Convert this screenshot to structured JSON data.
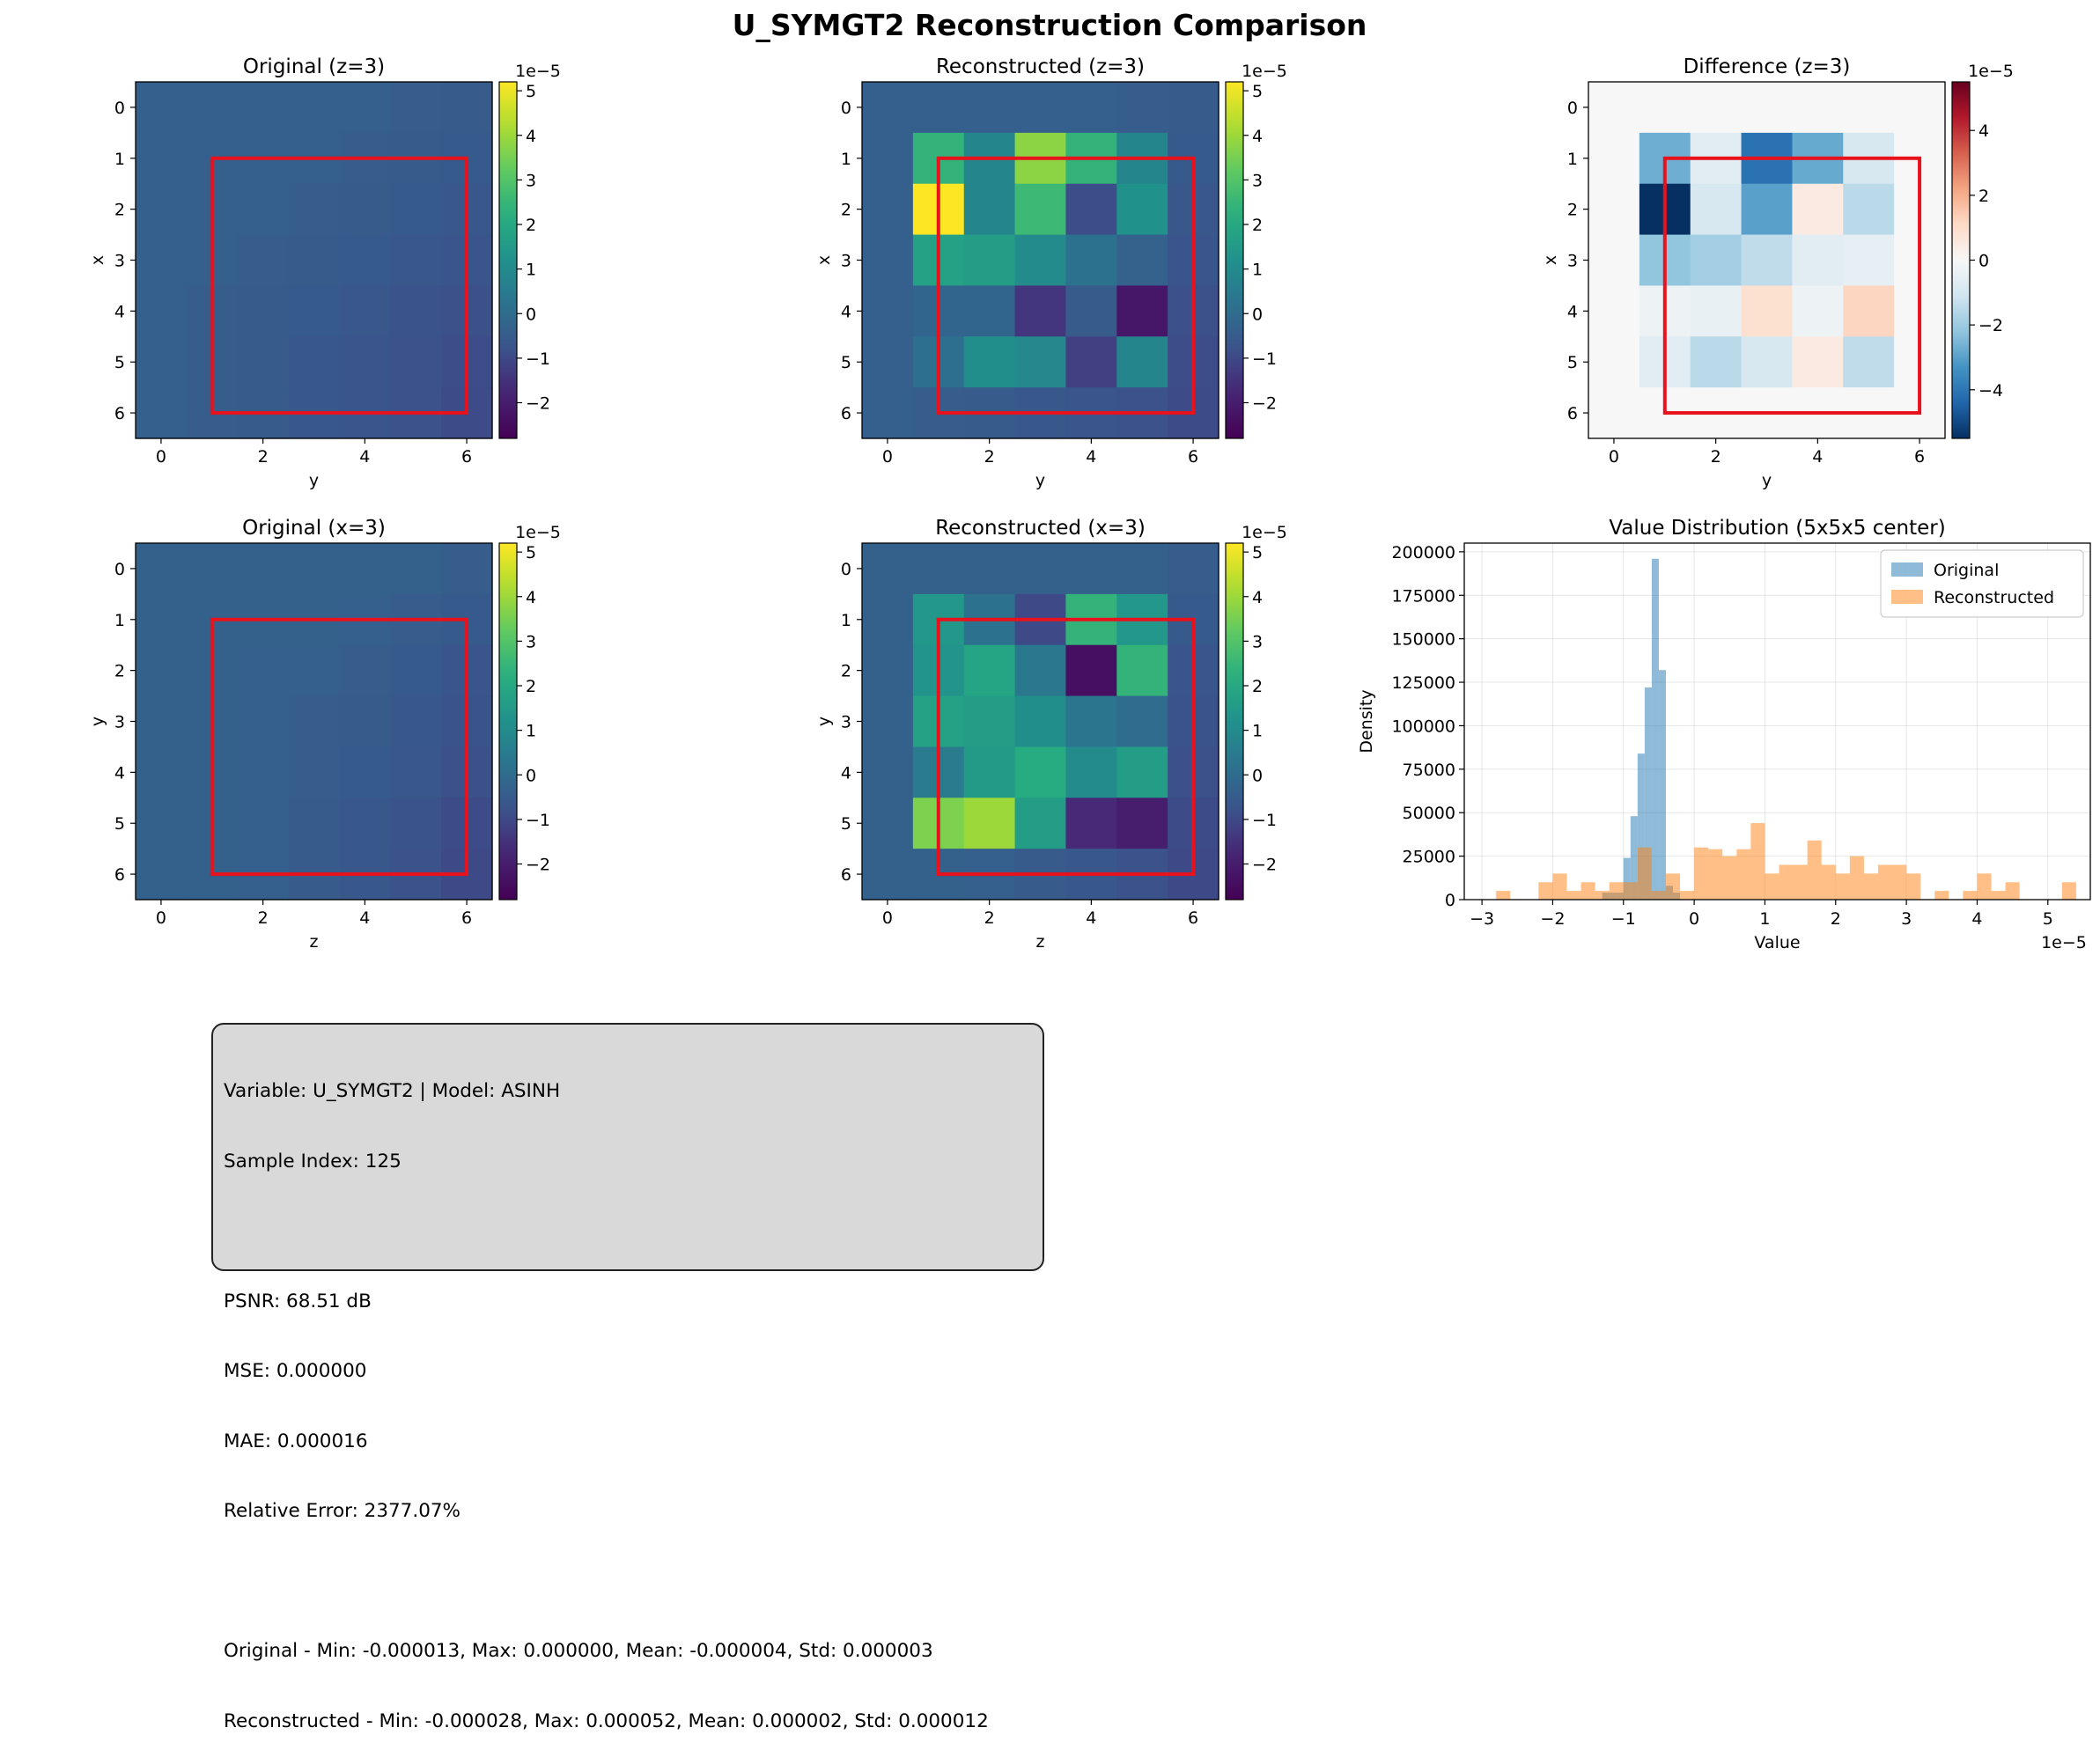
{
  "figure_title": "U_SYMGT2 Reconstruction Comparison",
  "chart_data": [
    {
      "type": "heatmap",
      "title": "Original (z=3)",
      "xlabel": "y",
      "ylabel": "x",
      "x_ticks": [
        "0",
        "2",
        "4",
        "6"
      ],
      "y_ticks": [
        "0",
        "1",
        "2",
        "3",
        "4",
        "5",
        "6"
      ],
      "colormap": "viridis",
      "vmin": -2.8e-05,
      "vmax": 5.2e-05,
      "colorbar_ticks": [
        "−2",
        "−1",
        "0",
        "1",
        "2",
        "3",
        "4",
        "5"
      ],
      "colorbar_exponent": "1e−5",
      "highlight_box": "rows 1-5, cols 1-5",
      "highlight_color": "#e8121c",
      "values": [
        [
          -4e-06,
          -4e-06,
          -4e-06,
          -4e-06,
          -4e-06,
          -4.5e-06,
          -5e-06
        ],
        [
          -4e-06,
          -4e-06,
          -4e-06,
          -4e-06,
          -4.5e-06,
          -5e-06,
          -5.5e-06
        ],
        [
          -4e-06,
          -4e-06,
          -4e-06,
          -4.5e-06,
          -5e-06,
          -5.5e-06,
          -6.5e-06
        ],
        [
          -4e-06,
          -4e-06,
          -4.5e-06,
          -5e-06,
          -5.5e-06,
          -6.5e-06,
          -7e-06
        ],
        [
          -4e-06,
          -4.5e-06,
          -5e-06,
          -5.5e-06,
          -6.5e-06,
          -7.5e-06,
          -8.5e-06
        ],
        [
          -4e-06,
          -4.5e-06,
          -5e-06,
          -6e-06,
          -7e-06,
          -8e-06,
          -9e-06
        ],
        [
          -4e-06,
          -4.5e-06,
          -5e-06,
          -6e-06,
          -7e-06,
          -8e-06,
          -9.5e-06
        ]
      ]
    },
    {
      "type": "heatmap",
      "title": "Reconstructed (z=3)",
      "xlabel": "y",
      "ylabel": "x",
      "x_ticks": [
        "0",
        "2",
        "4",
        "6"
      ],
      "y_ticks": [
        "0",
        "1",
        "2",
        "3",
        "4",
        "5",
        "6"
      ],
      "colormap": "viridis",
      "vmin": -2.8e-05,
      "vmax": 5.2e-05,
      "colorbar_ticks": [
        "−2",
        "−1",
        "0",
        "1",
        "2",
        "3",
        "4",
        "5"
      ],
      "colorbar_exponent": "1e−5",
      "highlight_box": "rows 1-5, cols 1-5",
      "highlight_color": "#e8121c",
      "values": [
        [
          -4e-06,
          -4e-06,
          -4e-06,
          -4e-06,
          -4e-06,
          -4.5e-06,
          -5e-06
        ],
        [
          -4e-06,
          2.4e-05,
          8e-06,
          3.8e-05,
          2.4e-05,
          8e-06,
          -5.5e-06
        ],
        [
          -4e-06,
          5.2e-05,
          8e-06,
          2.6e-05,
          -9e-06,
          1.2e-05,
          -6.5e-06
        ],
        [
          -4e-06,
          1.8e-05,
          1.6e-05,
          1e-05,
          2e-06,
          -3e-06,
          -7e-06
        ],
        [
          -4e-06,
          -2e-06,
          -2e-06,
          -1.4e-05,
          -5e-06,
          -2.2e-05,
          -8.5e-06
        ],
        [
          -4e-06,
          1e-06,
          1.1e-05,
          9e-06,
          -1.2e-05,
          8e-06,
          -9e-06
        ],
        [
          -4e-06,
          -4.5e-06,
          -5e-06,
          -6e-06,
          -7e-06,
          -8e-06,
          -9.5e-06
        ]
      ]
    },
    {
      "type": "heatmap",
      "title": "Difference (z=3)",
      "xlabel": "y",
      "ylabel": "x",
      "x_ticks": [
        "0",
        "2",
        "4",
        "6"
      ],
      "y_ticks": [
        "0",
        "1",
        "2",
        "3",
        "4",
        "5",
        "6"
      ],
      "colormap": "RdBu_r",
      "vmin": -5.5e-05,
      "vmax": 5.5e-05,
      "colorbar_ticks": [
        "−4",
        "−2",
        "0",
        "2",
        "4"
      ],
      "colorbar_exponent": "1e−5",
      "highlight_box": "rows 1-5, cols 1-5",
      "highlight_color": "#e8121c",
      "values": [
        [
          0,
          0,
          0,
          0,
          0,
          0,
          0
        ],
        [
          0,
          -2.7e-05,
          -6e-06,
          -4.1e-05,
          -2.8e-05,
          -9e-06,
          0
        ],
        [
          0,
          -5.5e-05,
          -9e-06,
          -3e-05,
          5e-06,
          -1.5e-05,
          0
        ],
        [
          0,
          -2.2e-05,
          -1.9e-05,
          -1.4e-05,
          -6e-06,
          -5e-06,
          0
        ],
        [
          0,
          -3e-06,
          -4e-06,
          9e-06,
          -3e-06,
          1.2e-05,
          0
        ],
        [
          0,
          -6e-06,
          -1.5e-05,
          -9e-06,
          5e-06,
          -1.4e-05,
          0
        ],
        [
          0,
          0,
          0,
          0,
          0,
          0,
          0
        ]
      ]
    },
    {
      "type": "heatmap",
      "title": "Original (x=3)",
      "xlabel": "z",
      "ylabel": "y",
      "x_ticks": [
        "0",
        "2",
        "4",
        "6"
      ],
      "y_ticks": [
        "0",
        "1",
        "2",
        "3",
        "4",
        "5",
        "6"
      ],
      "colormap": "viridis",
      "vmin": -2.8e-05,
      "vmax": 5.2e-05,
      "colorbar_ticks": [
        "−2",
        "−1",
        "0",
        "1",
        "2",
        "3",
        "4",
        "5"
      ],
      "colorbar_exponent": "1e−5",
      "highlight_box": "rows 1-5, cols 1-5",
      "highlight_color": "#e8121c",
      "values": [
        [
          -3.5e-06,
          -3.5e-06,
          -3.5e-06,
          -3.5e-06,
          -3.5e-06,
          -3.5e-06,
          -4.5e-06
        ],
        [
          -3.5e-06,
          -3.5e-06,
          -3.5e-06,
          -3.5e-06,
          -4e-06,
          -4.5e-06,
          -5.5e-06
        ],
        [
          -3.5e-06,
          -3.5e-06,
          -4e-06,
          -4e-06,
          -4.5e-06,
          -5.5e-06,
          -7e-06
        ],
        [
          -3.5e-06,
          -3.5e-06,
          -4e-06,
          -4.5e-06,
          -5e-06,
          -6e-06,
          -7.5e-06
        ],
        [
          -3.5e-06,
          -3.5e-06,
          -4e-06,
          -4.5e-06,
          -5.5e-06,
          -6.5e-06,
          -8.5e-06
        ],
        [
          -3.5e-06,
          -3.5e-06,
          -4e-06,
          -5e-06,
          -6e-06,
          -7.5e-06,
          -9.5e-06
        ],
        [
          -3.5e-06,
          -3.5e-06,
          -4e-06,
          -5e-06,
          -6e-06,
          -8e-06,
          -1e-05
        ]
      ]
    },
    {
      "type": "heatmap",
      "title": "Reconstructed (x=3)",
      "xlabel": "z",
      "ylabel": "y",
      "x_ticks": [
        "0",
        "2",
        "4",
        "6"
      ],
      "y_ticks": [
        "0",
        "1",
        "2",
        "3",
        "4",
        "5",
        "6"
      ],
      "colormap": "viridis",
      "vmin": -2.8e-05,
      "vmax": 5.2e-05,
      "colorbar_ticks": [
        "−2",
        "−1",
        "0",
        "1",
        "2",
        "3",
        "4",
        "5"
      ],
      "colorbar_exponent": "1e−5",
      "highlight_box": "rows 1-5, cols 1-5",
      "highlight_color": "#e8121c",
      "values": [
        [
          -3.5e-06,
          -3.5e-06,
          -3.5e-06,
          -3.5e-06,
          -3.5e-06,
          -3.5e-06,
          -4.5e-06
        ],
        [
          -3.5e-06,
          1.4e-05,
          2e-06,
          -1e-05,
          2.4e-05,
          1.4e-05,
          -5.5e-06
        ],
        [
          -3.5e-06,
          1.3e-05,
          1.9e-05,
          4e-06,
          -2.4e-05,
          2.4e-05,
          -7e-06
        ],
        [
          -3.5e-06,
          1.8e-05,
          1.6e-05,
          1.1e-05,
          3e-06,
          0.0,
          -7.5e-06
        ],
        [
          -3.5e-06,
          5e-06,
          1.5e-05,
          2.1e-05,
          1e-05,
          1.6e-05,
          -8.5e-06
        ],
        [
          -3.5e-06,
          3.6e-05,
          4e-05,
          1.6e-05,
          -1.7e-05,
          -2e-05,
          -9.5e-06
        ],
        [
          -3.5e-06,
          -3.5e-06,
          -4e-06,
          -5e-06,
          -6e-06,
          -8e-06,
          -1e-05
        ]
      ]
    },
    {
      "type": "histogram",
      "title": "Value Distribution (5x5x5 center)",
      "xlabel": "Value",
      "ylabel": "Density",
      "x_exponent": "1e−5",
      "xlim": [
        -3.25e-05,
        5.6e-05
      ],
      "ylim": [
        0,
        205000
      ],
      "x_ticks": [
        {
          "v": -3e-05,
          "label": "−3"
        },
        {
          "v": -2e-05,
          "label": "−2"
        },
        {
          "v": -1e-05,
          "label": "−1"
        },
        {
          "v": 0,
          "label": "0"
        },
        {
          "v": 1e-05,
          "label": "1"
        },
        {
          "v": 2e-05,
          "label": "2"
        },
        {
          "v": 3e-05,
          "label": "3"
        },
        {
          "v": 4e-05,
          "label": "4"
        },
        {
          "v": 5e-05,
          "label": "5"
        }
      ],
      "y_ticks": [
        0,
        25000,
        50000,
        75000,
        100000,
        125000,
        150000,
        175000,
        200000
      ],
      "grid": true,
      "legend_position": "upper right",
      "series": [
        {
          "name": "Original",
          "color": "#1f77b4",
          "alpha": 0.5,
          "bin_width": 1e-06,
          "bins": [
            [
              -1.3e-05,
              4000
            ],
            [
              -1.2e-05,
              4000
            ],
            [
              -1.1e-05,
              4000
            ],
            [
              -1e-05,
              24000
            ],
            [
              -9e-06,
              48000
            ],
            [
              -8e-06,
              84000
            ],
            [
              -7e-06,
              122000
            ],
            [
              -6e-06,
              196000
            ],
            [
              -5e-06,
              132000
            ],
            [
              -4e-06,
              8000
            ],
            [
              -3e-06,
              4000
            ]
          ]
        },
        {
          "name": "Reconstructed",
          "color": "#ff7f0e",
          "alpha": 0.5,
          "bin_width": 2e-06,
          "bins": [
            [
              -2.8e-05,
              5000
            ],
            [
              -2.6e-05,
              0
            ],
            [
              -2.4e-05,
              0
            ],
            [
              -2.2e-05,
              10000
            ],
            [
              -2e-05,
              15000
            ],
            [
              -1.8e-05,
              5000
            ],
            [
              -1.6e-05,
              10000
            ],
            [
              -1.4e-05,
              5000
            ],
            [
              -1.2e-05,
              10000
            ],
            [
              -1e-05,
              10000
            ],
            [
              -8e-06,
              30000
            ],
            [
              -6e-06,
              5000
            ],
            [
              -4e-06,
              15000
            ],
            [
              -2e-06,
              5000
            ],
            [
              0.0,
              30000
            ],
            [
              2e-06,
              29000
            ],
            [
              4e-06,
              25000
            ],
            [
              6e-06,
              29000
            ],
            [
              8e-06,
              44000
            ],
            [
              1e-05,
              15000
            ],
            [
              1.2e-05,
              20000
            ],
            [
              1.4e-05,
              20000
            ],
            [
              1.6e-05,
              34000
            ],
            [
              1.8e-05,
              20000
            ],
            [
              2e-05,
              15000
            ],
            [
              2.2e-05,
              25000
            ],
            [
              2.4e-05,
              15000
            ],
            [
              2.6e-05,
              20000
            ],
            [
              2.8e-05,
              20000
            ],
            [
              3e-05,
              15000
            ],
            [
              3.2e-05,
              0
            ],
            [
              3.4e-05,
              5000
            ],
            [
              3.6e-05,
              0
            ],
            [
              3.8e-05,
              5000
            ],
            [
              4e-05,
              15000
            ],
            [
              4.2e-05,
              5000
            ],
            [
              4.4e-05,
              10000
            ],
            [
              4.6e-05,
              0
            ],
            [
              4.8e-05,
              0
            ],
            [
              5e-05,
              0
            ],
            [
              5.2e-05,
              10000
            ]
          ]
        }
      ]
    }
  ],
  "stats_box": {
    "line1": "Variable: U_SYMGT2 | Model: ASINH",
    "line2": "Sample Index: 125",
    "line3": "PSNR: 68.51 dB",
    "line4": "MSE: 0.000000",
    "line5": "MAE: 0.000016",
    "line6": "Relative Error: 2377.07%",
    "line7": "Original - Min: -0.000013, Max: 0.000000, Mean: -0.000004, Std: 0.000003",
    "line8": "Reconstructed - Min: -0.000028, Max: 0.000052, Mean: 0.000002, Std: 0.000012"
  }
}
